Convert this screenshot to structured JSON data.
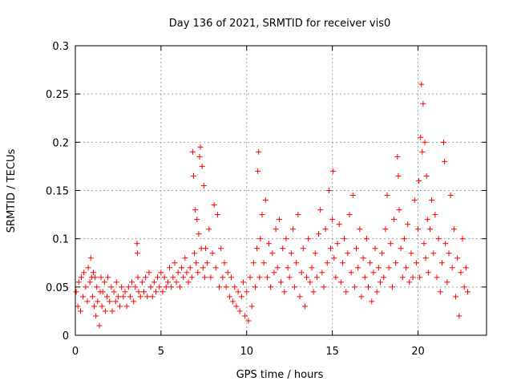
{
  "chart_data": {
    "type": "scatter",
    "title": "Day 136 of 2021, SRMTID for receiver vis0",
    "xlabel": "GPS time / hours",
    "ylabel": "SRMTID / TECUs",
    "xlim": [
      0,
      24
    ],
    "ylim": [
      0,
      0.3
    ],
    "x_ticks": [
      0,
      5,
      10,
      15,
      20
    ],
    "x_tick_labels": [
      "0",
      "5",
      "10",
      "15",
      "20"
    ],
    "y_ticks": [
      0,
      0.05,
      0.1,
      0.15,
      0.2,
      0.25,
      0.3
    ],
    "y_tick_labels": [
      "0",
      "0.05",
      "0.1",
      "0.15",
      "0.2",
      "0.25",
      "0.3"
    ],
    "grid": true,
    "marker": "+",
    "marker_color": "#ff0000",
    "series": [
      {
        "name": "vis0",
        "points": [
          [
            0.05,
            0.045
          ],
          [
            0.15,
            0.03
          ],
          [
            0.2,
            0.055
          ],
          [
            0.3,
            0.025
          ],
          [
            0.35,
            0.06
          ],
          [
            0.45,
            0.04
          ],
          [
            0.5,
            0.065
          ],
          [
            0.6,
            0.05
          ],
          [
            0.7,
            0.035
          ],
          [
            0.75,
            0.07
          ],
          [
            0.85,
            0.055
          ],
          [
            0.9,
            0.08
          ],
          [
            0.95,
            0.06
          ],
          [
            1.0,
            0.04
          ],
          [
            1.05,
            0.065
          ],
          [
            1.1,
            0.03
          ],
          [
            1.15,
            0.06
          ],
          [
            1.2,
            0.02
          ],
          [
            1.25,
            0.05
          ],
          [
            1.3,
            0.035
          ],
          [
            1.4,
            0.01
          ],
          [
            1.45,
            0.045
          ],
          [
            1.5,
            0.06
          ],
          [
            1.55,
            0.03
          ],
          [
            1.6,
            0.045
          ],
          [
            1.7,
            0.055
          ],
          [
            1.75,
            0.025
          ],
          [
            1.85,
            0.04
          ],
          [
            1.9,
            0.06
          ],
          [
            2.0,
            0.035
          ],
          [
            2.1,
            0.05
          ],
          [
            2.15,
            0.025
          ],
          [
            2.25,
            0.045
          ],
          [
            2.35,
            0.035
          ],
          [
            2.4,
            0.055
          ],
          [
            2.5,
            0.04
          ],
          [
            2.6,
            0.03
          ],
          [
            2.7,
            0.05
          ],
          [
            2.8,
            0.04
          ],
          [
            2.9,
            0.045
          ],
          [
            3.0,
            0.03
          ],
          [
            3.1,
            0.05
          ],
          [
            3.2,
            0.04
          ],
          [
            3.3,
            0.055
          ],
          [
            3.4,
            0.035
          ],
          [
            3.5,
            0.05
          ],
          [
            3.6,
            0.095
          ],
          [
            3.62,
            0.085
          ],
          [
            3.65,
            0.06
          ],
          [
            3.7,
            0.045
          ],
          [
            3.8,
            0.04
          ],
          [
            3.9,
            0.055
          ],
          [
            4.0,
            0.045
          ],
          [
            4.1,
            0.06
          ],
          [
            4.2,
            0.04
          ],
          [
            4.3,
            0.065
          ],
          [
            4.4,
            0.05
          ],
          [
            4.5,
            0.04
          ],
          [
            4.6,
            0.055
          ],
          [
            4.7,
            0.045
          ],
          [
            4.8,
            0.06
          ],
          [
            4.9,
            0.05
          ],
          [
            5.0,
            0.065
          ],
          [
            5.1,
            0.045
          ],
          [
            5.2,
            0.06
          ],
          [
            5.3,
            0.05
          ],
          [
            5.4,
            0.055
          ],
          [
            5.5,
            0.07
          ],
          [
            5.6,
            0.05
          ],
          [
            5.7,
            0.06
          ],
          [
            5.8,
            0.075
          ],
          [
            5.9,
            0.055
          ],
          [
            6.0,
            0.065
          ],
          [
            6.1,
            0.05
          ],
          [
            6.2,
            0.07
          ],
          [
            6.3,
            0.06
          ],
          [
            6.4,
            0.08
          ],
          [
            6.5,
            0.065
          ],
          [
            6.6,
            0.055
          ],
          [
            6.7,
            0.07
          ],
          [
            6.8,
            0.06
          ],
          [
            6.85,
            0.19
          ],
          [
            6.9,
            0.165
          ],
          [
            6.95,
            0.085
          ],
          [
            7.0,
            0.13
          ],
          [
            7.05,
            0.075
          ],
          [
            7.1,
            0.12
          ],
          [
            7.15,
            0.065
          ],
          [
            7.2,
            0.105
          ],
          [
            7.25,
            0.185
          ],
          [
            7.3,
            0.195
          ],
          [
            7.35,
            0.09
          ],
          [
            7.4,
            0.175
          ],
          [
            7.45,
            0.07
          ],
          [
            7.5,
            0.155
          ],
          [
            7.55,
            0.06
          ],
          [
            7.6,
            0.09
          ],
          [
            7.7,
            0.075
          ],
          [
            7.8,
            0.11
          ],
          [
            7.9,
            0.06
          ],
          [
            8.0,
            0.085
          ],
          [
            8.1,
            0.135
          ],
          [
            8.2,
            0.07
          ],
          [
            8.3,
            0.125
          ],
          [
            8.4,
            0.05
          ],
          [
            8.5,
            0.09
          ],
          [
            8.6,
            0.06
          ],
          [
            8.7,
            0.075
          ],
          [
            8.8,
            0.05
          ],
          [
            8.9,
            0.065
          ],
          [
            9.0,
            0.04
          ],
          [
            9.1,
            0.06
          ],
          [
            9.2,
            0.035
          ],
          [
            9.3,
            0.05
          ],
          [
            9.4,
            0.03
          ],
          [
            9.5,
            0.045
          ],
          [
            9.6,
            0.025
          ],
          [
            9.7,
            0.04
          ],
          [
            9.8,
            0.055
          ],
          [
            9.9,
            0.02
          ],
          [
            10.0,
            0.045
          ],
          [
            10.1,
            0.015
          ],
          [
            10.2,
            0.06
          ],
          [
            10.3,
            0.03
          ],
          [
            10.4,
            0.075
          ],
          [
            10.5,
            0.05
          ],
          [
            10.6,
            0.09
          ],
          [
            10.65,
            0.17
          ],
          [
            10.7,
            0.19
          ],
          [
            10.75,
            0.06
          ],
          [
            10.8,
            0.1
          ],
          [
            10.9,
            0.125
          ],
          [
            11.0,
            0.075
          ],
          [
            11.1,
            0.14
          ],
          [
            11.2,
            0.06
          ],
          [
            11.3,
            0.095
          ],
          [
            11.4,
            0.05
          ],
          [
            11.5,
            0.085
          ],
          [
            11.6,
            0.065
          ],
          [
            11.7,
            0.11
          ],
          [
            11.8,
            0.07
          ],
          [
            11.9,
            0.12
          ],
          [
            12.0,
            0.055
          ],
          [
            12.1,
            0.09
          ],
          [
            12.2,
            0.045
          ],
          [
            12.3,
            0.1
          ],
          [
            12.4,
            0.07
          ],
          [
            12.5,
            0.06
          ],
          [
            12.6,
            0.085
          ],
          [
            12.7,
            0.11
          ],
          [
            12.8,
            0.05
          ],
          [
            12.9,
            0.075
          ],
          [
            13.0,
            0.125
          ],
          [
            13.1,
            0.04
          ],
          [
            13.2,
            0.065
          ],
          [
            13.3,
            0.09
          ],
          [
            13.4,
            0.03
          ],
          [
            13.5,
            0.06
          ],
          [
            13.6,
            0.1
          ],
          [
            13.7,
            0.055
          ],
          [
            13.8,
            0.07
          ],
          [
            13.9,
            0.045
          ],
          [
            14.0,
            0.085
          ],
          [
            14.1,
            0.06
          ],
          [
            14.2,
            0.105
          ],
          [
            14.3,
            0.13
          ],
          [
            14.4,
            0.065
          ],
          [
            14.5,
            0.05
          ],
          [
            14.6,
            0.11
          ],
          [
            14.7,
            0.075
          ],
          [
            14.8,
            0.15
          ],
          [
            14.9,
            0.09
          ],
          [
            15.0,
            0.12
          ],
          [
            15.05,
            0.17
          ],
          [
            15.1,
            0.08
          ],
          [
            15.2,
            0.06
          ],
          [
            15.3,
            0.095
          ],
          [
            15.4,
            0.115
          ],
          [
            15.5,
            0.055
          ],
          [
            15.6,
            0.075
          ],
          [
            15.7,
            0.1
          ],
          [
            15.8,
            0.045
          ],
          [
            15.9,
            0.085
          ],
          [
            16.0,
            0.125
          ],
          [
            16.1,
            0.065
          ],
          [
            16.2,
            0.145
          ],
          [
            16.3,
            0.05
          ],
          [
            16.4,
            0.09
          ],
          [
            16.5,
            0.07
          ],
          [
            16.6,
            0.11
          ],
          [
            16.7,
            0.04
          ],
          [
            16.8,
            0.08
          ],
          [
            16.9,
            0.06
          ],
          [
            17.0,
            0.1
          ],
          [
            17.1,
            0.05
          ],
          [
            17.2,
            0.075
          ],
          [
            17.3,
            0.035
          ],
          [
            17.4,
            0.065
          ],
          [
            17.5,
            0.09
          ],
          [
            17.6,
            0.045
          ],
          [
            17.7,
            0.07
          ],
          [
            17.8,
            0.055
          ],
          [
            17.9,
            0.085
          ],
          [
            18.0,
            0.06
          ],
          [
            18.1,
            0.11
          ],
          [
            18.2,
            0.145
          ],
          [
            18.3,
            0.07
          ],
          [
            18.4,
            0.095
          ],
          [
            18.5,
            0.05
          ],
          [
            18.6,
            0.12
          ],
          [
            18.7,
            0.075
          ],
          [
            18.8,
            0.185
          ],
          [
            18.85,
            0.165
          ],
          [
            18.9,
            0.13
          ],
          [
            19.0,
            0.09
          ],
          [
            19.1,
            0.06
          ],
          [
            19.2,
            0.1
          ],
          [
            19.3,
            0.07
          ],
          [
            19.4,
            0.115
          ],
          [
            19.5,
            0.055
          ],
          [
            19.6,
            0.085
          ],
          [
            19.7,
            0.06
          ],
          [
            19.8,
            0.14
          ],
          [
            19.9,
            0.075
          ],
          [
            20.0,
            0.11
          ],
          [
            20.05,
            0.16
          ],
          [
            20.1,
            0.06
          ],
          [
            20.15,
            0.205
          ],
          [
            20.2,
            0.26
          ],
          [
            20.25,
            0.19
          ],
          [
            20.3,
            0.24
          ],
          [
            20.35,
            0.095
          ],
          [
            20.4,
            0.2
          ],
          [
            20.45,
            0.08
          ],
          [
            20.5,
            0.165
          ],
          [
            20.55,
            0.12
          ],
          [
            20.6,
            0.065
          ],
          [
            20.7,
            0.11
          ],
          [
            20.8,
            0.14
          ],
          [
            20.9,
            0.085
          ],
          [
            21.0,
            0.125
          ],
          [
            21.1,
            0.06
          ],
          [
            21.2,
            0.1
          ],
          [
            21.3,
            0.045
          ],
          [
            21.4,
            0.075
          ],
          [
            21.5,
            0.2
          ],
          [
            21.55,
            0.18
          ],
          [
            21.6,
            0.095
          ],
          [
            21.7,
            0.055
          ],
          [
            21.8,
            0.085
          ],
          [
            21.9,
            0.145
          ],
          [
            22.0,
            0.07
          ],
          [
            22.1,
            0.11
          ],
          [
            22.2,
            0.04
          ],
          [
            22.3,
            0.08
          ],
          [
            22.4,
            0.02
          ],
          [
            22.5,
            0.065
          ],
          [
            22.6,
            0.1
          ],
          [
            22.7,
            0.05
          ],
          [
            22.8,
            0.07
          ],
          [
            22.9,
            0.045
          ]
        ]
      }
    ]
  }
}
